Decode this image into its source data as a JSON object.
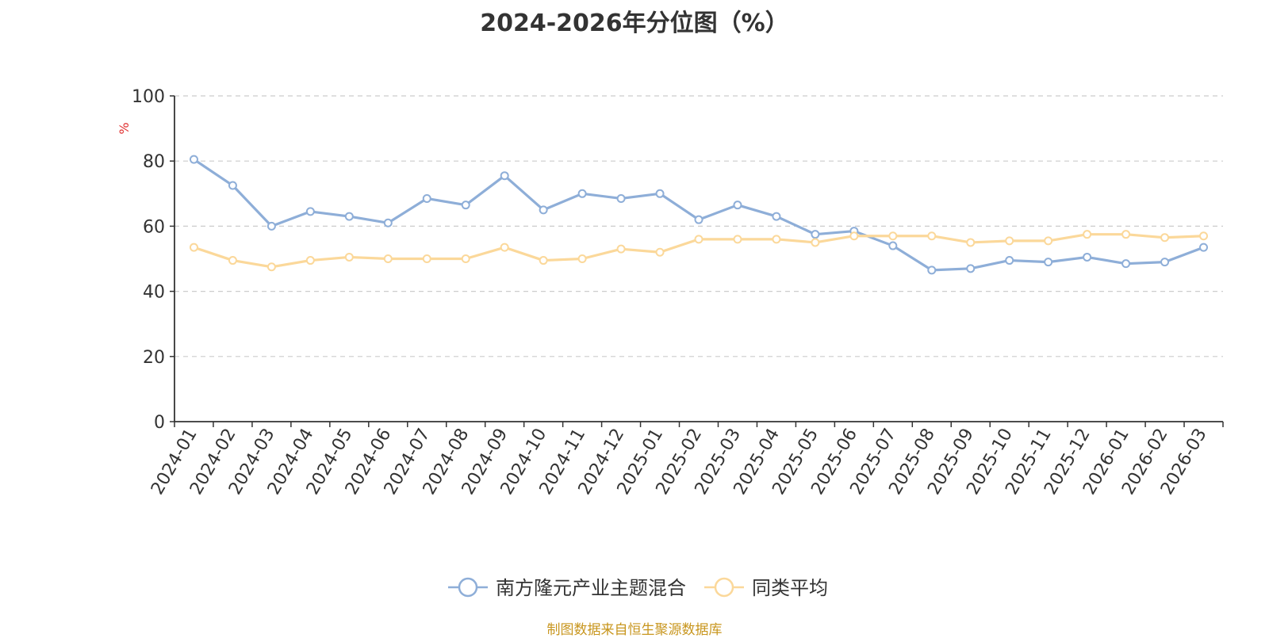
{
  "title": "2024-2026年分位图（%）",
  "source_note": "制图数据来自恒生聚源数据库",
  "colors": {
    "series_1": "#8eaed8",
    "series_2": "#fbd89a",
    "ylabel": "#e03030",
    "axis": "#333333",
    "grid": "#cccccc",
    "source": "#c8961e"
  },
  "chart_data": {
    "type": "line",
    "title": "2024-2026年分位图（%）",
    "xlabel": "",
    "ylabel": "%",
    "ylim": [
      0,
      100
    ],
    "yticks": [
      "0",
      "20",
      "40",
      "60",
      "80",
      "100"
    ],
    "grid": true,
    "legend_position": "bottom-center",
    "categories": [
      "2024-01",
      "2024-02",
      "2024-03",
      "2024-04",
      "2024-05",
      "2024-06",
      "2024-07",
      "2024-08",
      "2024-09",
      "2024-10",
      "2024-11",
      "2024-12",
      "2025-01",
      "2025-02",
      "2025-03",
      "2025-04",
      "2025-05",
      "2025-06",
      "2025-07",
      "2025-08",
      "2025-09",
      "2025-10",
      "2025-11",
      "2025-12",
      "2026-01",
      "2026-02",
      "2026-03"
    ],
    "series": [
      {
        "name": "南方隆元产业主题混合",
        "values": [
          80.5,
          72.5,
          60.0,
          64.5,
          63.0,
          61.0,
          68.5,
          66.5,
          75.5,
          65.0,
          70.0,
          68.5,
          70.0,
          62.0,
          66.5,
          63.0,
          57.5,
          58.5,
          54.0,
          46.5,
          47.0,
          49.5,
          49.0,
          50.5,
          48.5,
          49.0,
          53.5
        ]
      },
      {
        "name": "同类平均",
        "values": [
          53.5,
          49.5,
          47.5,
          49.5,
          50.5,
          50.0,
          50.0,
          50.0,
          53.5,
          49.5,
          50.0,
          53.0,
          52.0,
          56.0,
          56.0,
          56.0,
          55.0,
          57.0,
          57.0,
          57.0,
          55.0,
          55.5,
          55.5,
          57.5,
          57.5,
          56.5,
          57.0
        ]
      }
    ]
  }
}
